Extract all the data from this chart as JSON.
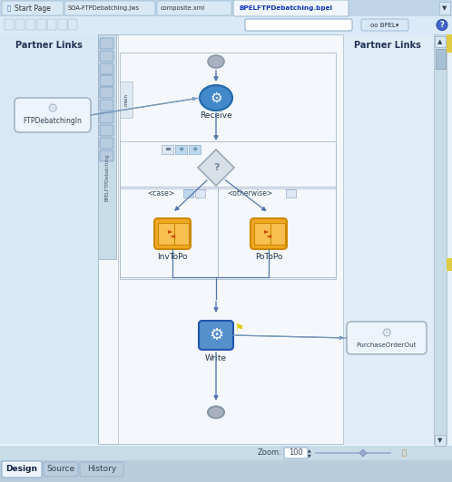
{
  "bg_outer": "#ccdcee",
  "tab_bar_bg": "#c0d4e8",
  "tab_inactive_bg": "#d8e8f4",
  "tab_active_bg": "#f0f6fc",
  "tab_active_text": "#1133bb",
  "tab_inactive_text": "#333333",
  "toolbar_bg": "#daeaf8",
  "content_bg": "#e8f2fa",
  "canvas_bg": "#f4f8fc",
  "canvas_border": "#aabccc",
  "left_panel_bg": "#d8e8f4",
  "right_panel_bg": "#e0ecf6",
  "side_toolbar_bg": "#c8dce8",
  "side_toolbar_border": "#9ab0c4",
  "partner_links_text": "Partner Links",
  "tab1": "Start Page",
  "tab2": "SOA-FTPDebatching.jws",
  "tab3": "composite.xml",
  "tab4": "BPELFTPDebatching.bpel",
  "bottom_tabs": [
    "Design",
    "Source",
    "History"
  ],
  "receive_label": "Receive",
  "write_label": "Write",
  "invtopo_label": "InvToPo",
  "potopo_label": "PoToPo",
  "ftp_label": "FTPDebatchingIn",
  "purchase_label": "PurchaseOrderOut",
  "zoom_text": "Zoom:",
  "zoom_value": "100",
  "case_label": "<case>",
  "otherwise_label": "<otherwise>",
  "receive_fill": "#4488cc",
  "receive_border": "#2266aa",
  "write_fill": "#5590cc",
  "write_border": "#2255aa",
  "invtopo_fill": "#f0a820",
  "invtopo_border": "#cc8800",
  "potopo_fill": "#f0a820",
  "potopo_border": "#cc8800",
  "start_fill": "#aab0c0",
  "start_border": "#8898aa",
  "end_fill": "#aab0c0",
  "end_border": "#8898aa",
  "diamond_fill": "#d8dfe8",
  "diamond_border": "#9aaabb",
  "arrow_color": "#5577aa",
  "connector_color": "#7799bb",
  "ftp_box_fill": "#eef4fc",
  "ftp_box_border": "#9aaabb",
  "purchase_box_fill": "#eef4fc",
  "purchase_box_border": "#9aaabb",
  "scrollbar_bg": "#c8dce8",
  "scrollbar_thumb": "#a8c0d4",
  "status_bg": "#c8dce8",
  "bottom_tab_bg": "#b8ccdc",
  "bottom_active_bg": "#eef4fc"
}
